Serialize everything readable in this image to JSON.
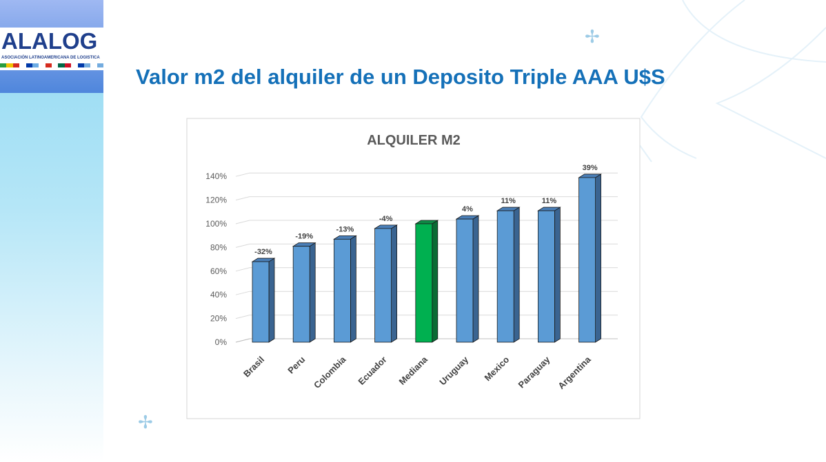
{
  "logo": {
    "text": "ALALOG",
    "subtitle": "ASOCIACIÓN LATINOAMERICANA DE LOGISTICA"
  },
  "page_title": "Valor m2 del alquiler de un Deposito Triple AAA U$S",
  "colors": {
    "bar": "#5b9bd5",
    "bar_highlight": "#00b050",
    "title": "#1470b8"
  },
  "chart_data": {
    "type": "bar",
    "title": "ALQUILER M2",
    "categories": [
      "Brasil",
      "Peru",
      "Colombia",
      "Ecuador",
      "Mediana",
      "Uruguay",
      "Mexico",
      "Paraguay",
      "Argentina"
    ],
    "values": [
      68,
      81,
      87,
      96,
      100,
      104,
      111,
      111,
      139
    ],
    "data_labels": [
      "-32%",
      "-19%",
      "-13%",
      "-4%",
      "",
      "4%",
      "11%",
      "11%",
      "39%"
    ],
    "highlight": "Mediana",
    "ytick_labels": [
      "0%",
      "20%",
      "40%",
      "60%",
      "80%",
      "100%",
      "120%",
      "140%"
    ],
    "ylim": [
      0,
      140
    ],
    "xlabel": "",
    "ylabel": "",
    "grid": true
  }
}
